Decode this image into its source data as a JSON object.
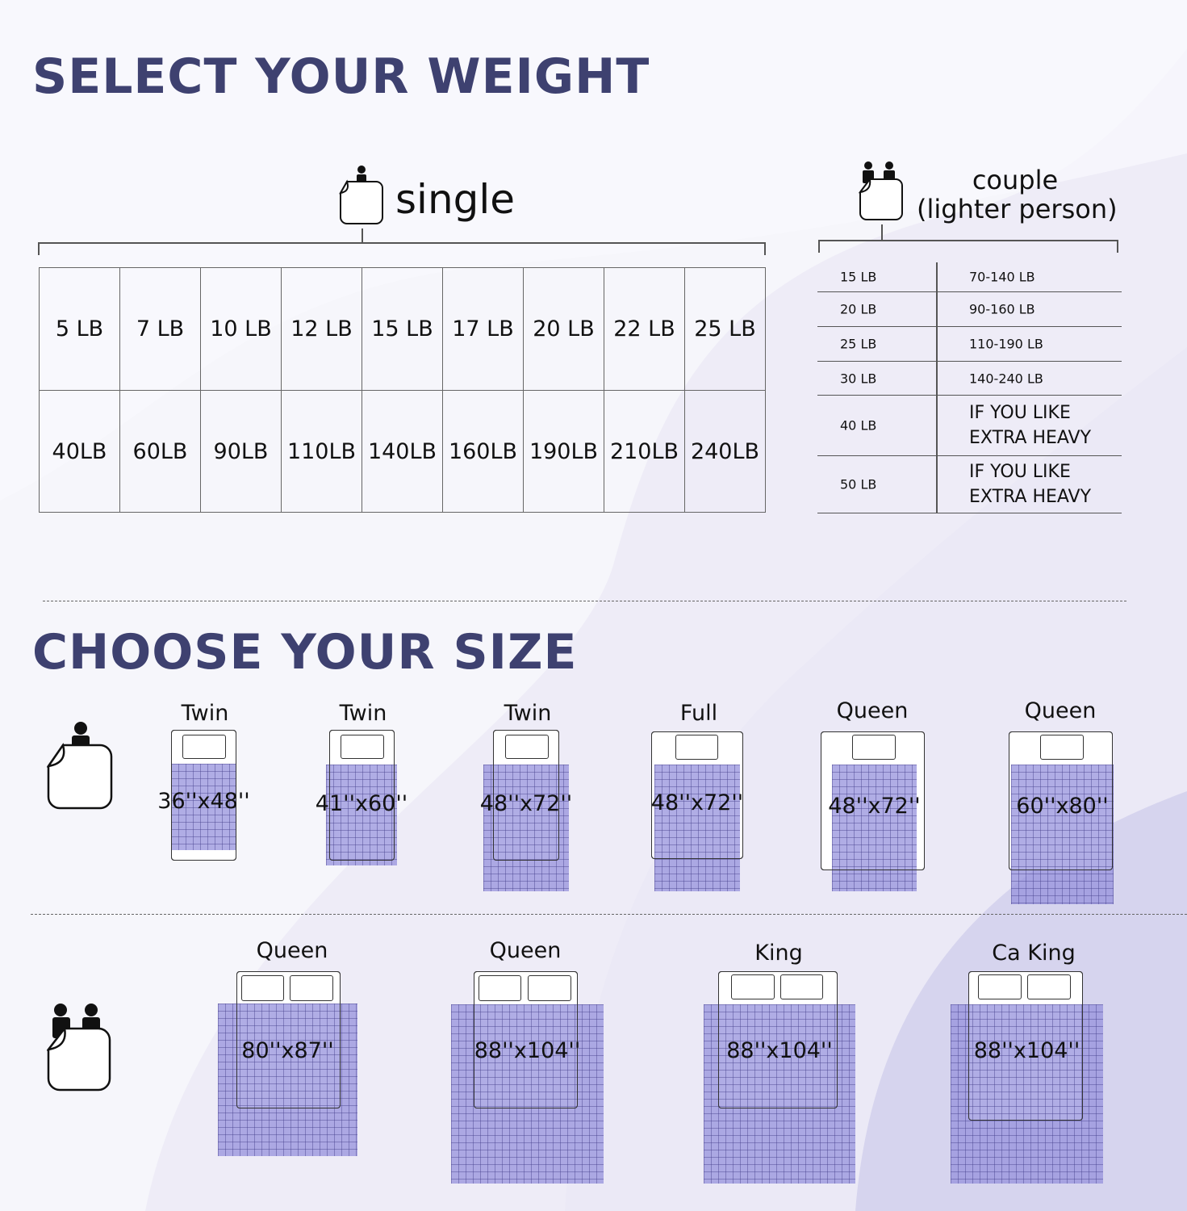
{
  "weight_section": {
    "title": "SELECT YOUR WEIGHT",
    "single": {
      "label": "single",
      "icon": "single-person-blanket-icon",
      "blanket_weights": [
        "5 LB",
        "7 LB",
        "10 LB",
        "12 LB",
        "15 LB",
        "17 LB",
        "20 LB",
        "22 LB",
        "25 LB"
      ],
      "body_weights": [
        "40LB",
        "60LB",
        "90LB",
        "110LB",
        "140LB",
        "160LB",
        "190LB",
        "210LB",
        "240LB"
      ]
    },
    "couple": {
      "label": "couple",
      "sublabel": "(lighter person)",
      "icon": "couple-blanket-icon",
      "rows": [
        {
          "blanket": "15 LB",
          "body": "70-140 LB"
        },
        {
          "blanket": "20 LB",
          "body": "90-160 LB"
        },
        {
          "blanket": "25 LB",
          "body": "110-190 LB"
        },
        {
          "blanket": "30 LB",
          "body": "140-240 LB"
        },
        {
          "blanket": "40 LB",
          "body": "IF YOU LIKE EXTRA HEAVY"
        },
        {
          "blanket": "50 LB",
          "body": "IF YOU LIKE EXTRA HEAVY"
        }
      ]
    }
  },
  "size_section": {
    "title": "CHOOSE YOUR SIZE",
    "single_sizes": [
      {
        "bed": "Twin",
        "size": "36''x48''"
      },
      {
        "bed": "Twin",
        "size": "41''x60''"
      },
      {
        "bed": "Twin",
        "size": "48''x72''"
      },
      {
        "bed": "Full",
        "size": "48''x72''"
      },
      {
        "bed": "Queen",
        "size": "48''x72''"
      },
      {
        "bed": "Queen",
        "size": "60''x80''"
      }
    ],
    "couple_sizes": [
      {
        "bed": "Queen",
        "size": "80''x87''"
      },
      {
        "bed": "Queen",
        "size": "88''x104''"
      },
      {
        "bed": "King",
        "size": "88''x104''"
      },
      {
        "bed": "Ca King",
        "size": "88''x104''"
      }
    ]
  },
  "colors": {
    "title": "#3e4170",
    "blanket": "#9c98dc",
    "background": "#f6f6fb"
  }
}
